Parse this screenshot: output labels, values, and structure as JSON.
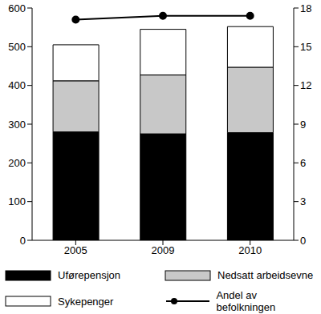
{
  "chart_data": {
    "type": "bar",
    "stacked": true,
    "legend": "bottom",
    "grid": false,
    "categories": [
      "2005",
      "2009",
      "2010"
    ],
    "ylim": [
      0,
      600
    ],
    "yticks": [
      0,
      100,
      200,
      300,
      400,
      500,
      600
    ],
    "y2lim": [
      0,
      18
    ],
    "y2ticks": [
      0,
      3,
      6,
      9,
      12,
      15,
      18
    ],
    "series": [
      {
        "name": "Uførepensjon",
        "type": "bar",
        "color": "#000000",
        "values": [
          280,
          275,
          278
        ]
      },
      {
        "name": "Nedsatt arbeidsevne",
        "type": "bar",
        "color": "#c8c8c8",
        "values": [
          132,
          152,
          169
        ]
      },
      {
        "name": "Sykepenger",
        "type": "bar",
        "color": "#ffffff",
        "values": [
          93,
          118,
          105
        ]
      },
      {
        "name": "Andel av befolkningen",
        "type": "line",
        "axis": "y2",
        "color": "#000000",
        "marker": "circle",
        "values": [
          17.1,
          17.4,
          17.4
        ]
      }
    ]
  }
}
